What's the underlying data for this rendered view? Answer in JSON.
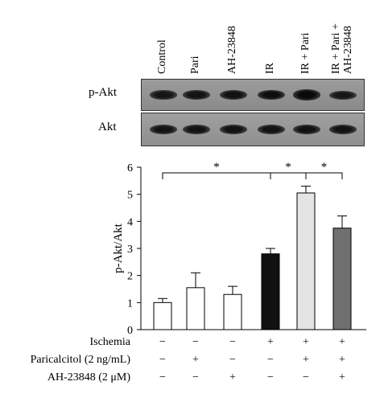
{
  "lanes": [
    "Control",
    "Pari",
    "AH-23848",
    "IR",
    "IR + Pari",
    "IR + Pari + AH-23848"
  ],
  "lane_label_lines": [
    [
      "Control"
    ],
    [
      "Pari"
    ],
    [
      "AH-23848"
    ],
    [
      "IR"
    ],
    [
      "IR + Pari"
    ],
    [
      "IR + Pari +",
      "AH-23848"
    ]
  ],
  "blots": [
    {
      "label": "p-Akt",
      "band_intensity": [
        0.55,
        0.6,
        0.62,
        0.75,
        0.85,
        0.5
      ]
    },
    {
      "label": "Akt",
      "band_intensity": [
        0.6,
        0.6,
        0.6,
        0.6,
        0.62,
        0.6
      ]
    }
  ],
  "chart_data": {
    "type": "bar",
    "categories": [
      "Control",
      "Pari",
      "AH-23848",
      "IR",
      "IR + Pari",
      "IR + Pari + AH-23848"
    ],
    "values": [
      1.0,
      1.55,
      1.3,
      2.8,
      5.05,
      3.75
    ],
    "errors": [
      0.15,
      0.55,
      0.3,
      0.2,
      0.25,
      0.45
    ],
    "bar_colors": [
      "#ffffff",
      "#ffffff",
      "#ffffff",
      "#111111",
      "#e4e4e4",
      "#6f6f6f"
    ],
    "ylabel": "p-Akt/Akt",
    "ylim": [
      0,
      6
    ],
    "yticks": [
      0,
      1,
      2,
      3,
      4,
      5,
      6
    ],
    "significance": [
      {
        "from": 0,
        "to": 3,
        "label": "*"
      },
      {
        "from": 3,
        "to": 4,
        "label": "*"
      },
      {
        "from": 4,
        "to": 5,
        "label": "*"
      }
    ]
  },
  "conditions": [
    {
      "label": "Ischemia",
      "signs": [
        "−",
        "−",
        "−",
        "+",
        "+",
        "+"
      ]
    },
    {
      "label": "Paricalcitol (2 ng/mL)",
      "signs": [
        "−",
        "+",
        "−",
        "−",
        "+",
        "+"
      ]
    },
    {
      "label": "AH-23848 (2 μM)",
      "signs": [
        "−",
        "−",
        "+",
        "−",
        "−",
        "+"
      ]
    }
  ]
}
